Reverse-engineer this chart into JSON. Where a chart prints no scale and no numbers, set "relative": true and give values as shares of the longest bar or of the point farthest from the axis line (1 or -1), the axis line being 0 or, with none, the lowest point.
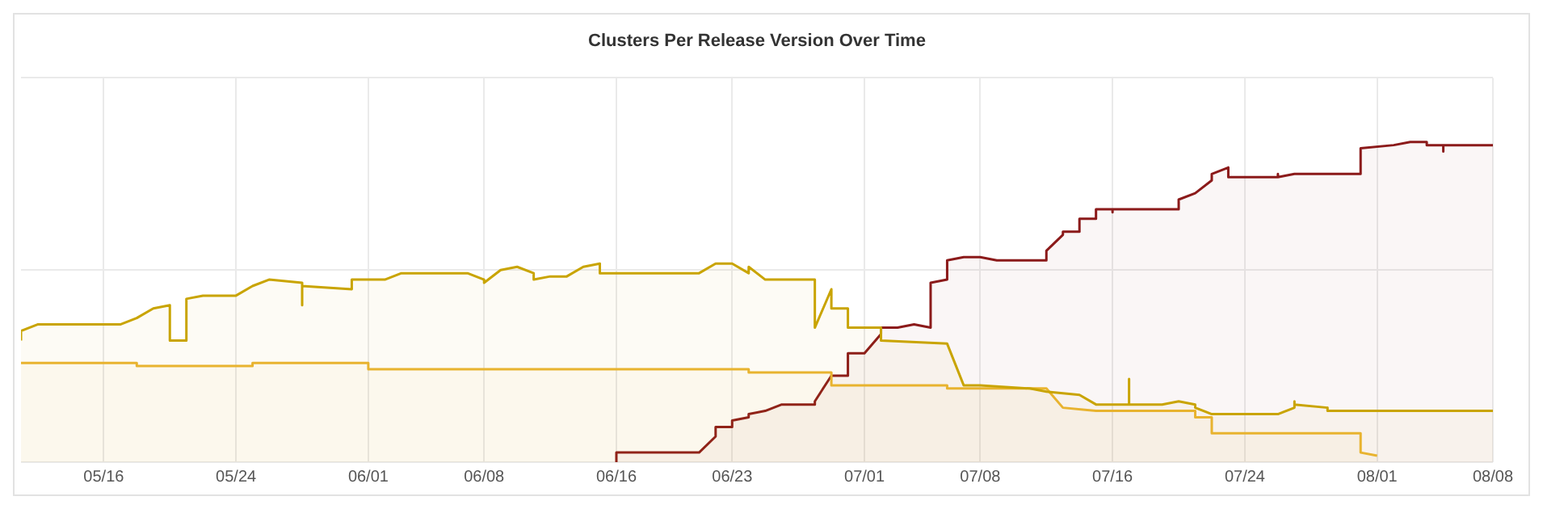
{
  "chart_data": {
    "type": "area",
    "title": "Clusters Per Release Version Over Time",
    "relative": true,
    "grid": true,
    "xlim": [
      "--05-11",
      "--08-08"
    ],
    "xticks": [
      {
        "value": "--05-16",
        "label": "05/16"
      },
      {
        "value": "--05-24",
        "label": "05/24"
      },
      {
        "value": "--06-01",
        "label": "06/01"
      },
      {
        "value": "--06-08",
        "label": "06/08"
      },
      {
        "value": "--06-16",
        "label": "06/16"
      },
      {
        "value": "--06-23",
        "label": "06/23"
      },
      {
        "value": "--07-01",
        "label": "07/01"
      },
      {
        "value": "--07-08",
        "label": "07/08"
      },
      {
        "value": "--07-16",
        "label": "07/16"
      },
      {
        "value": "--07-24",
        "label": "07/24"
      },
      {
        "value": "--08-01",
        "label": "08/01"
      },
      {
        "value": "--08-08",
        "label": "08/08"
      }
    ],
    "series": [
      {
        "color": "#c9a400",
        "x": [
          "--05-11",
          "--05-11",
          "--05-12",
          "--05-17",
          "--05-18",
          "--05-19",
          "--05-20",
          "--05-20",
          "--05-21",
          "--05-21",
          "--05-22",
          "--05-24",
          "--05-25",
          "--05-26",
          "--05-28",
          "--05-28",
          "--05-28",
          "--05-31",
          "--05-31",
          "--06-02",
          "--06-03",
          "--06-07",
          "--06-08",
          "--06-08",
          "--06-09",
          "--06-10",
          "--06-11",
          "--06-11",
          "--06-12",
          "--06-13",
          "--06-14",
          "--06-15",
          "--06-15",
          "--06-18",
          "--06-21",
          "--06-22",
          "--06-23",
          "--06-24",
          "--06-24",
          "--06-25",
          "--06-28",
          "--06-28",
          "--06-29",
          "--06-29",
          "--06-30",
          "--06-30",
          "--07-02",
          "--07-02",
          "--07-06",
          "--07-07",
          "--07-08",
          "--07-11",
          "--07-12",
          "--07-14",
          "--07-15",
          "--07-17",
          "--07-17",
          "--07-17",
          "--07-19",
          "--07-20",
          "--07-21",
          "--07-21",
          "--07-22",
          "--07-26",
          "--07-27",
          "--07-27",
          "--07-27",
          "--07-29",
          "--07-29",
          "--08-08"
        ],
        "values": [
          0.38,
          0.41,
          0.43,
          0.43,
          0.45,
          0.48,
          0.49,
          0.38,
          0.38,
          0.51,
          0.52,
          0.52,
          0.55,
          0.57,
          0.56,
          0.49,
          0.55,
          0.54,
          0.57,
          0.57,
          0.59,
          0.59,
          0.57,
          0.56,
          0.6,
          0.61,
          0.59,
          0.57,
          0.58,
          0.58,
          0.61,
          0.62,
          0.59,
          0.59,
          0.59,
          0.62,
          0.62,
          0.59,
          0.61,
          0.57,
          0.57,
          0.42,
          0.54,
          0.48,
          0.48,
          0.42,
          0.42,
          0.38,
          0.37,
          0.24,
          0.24,
          0.23,
          0.22,
          0.21,
          0.18,
          0.18,
          0.26,
          0.18,
          0.18,
          0.19,
          0.18,
          0.17,
          0.15,
          0.15,
          0.17,
          0.19,
          0.18,
          0.17,
          0.16,
          0.16
        ]
      },
      {
        "color": "#eab531",
        "x": [
          "--05-11",
          "--05-18",
          "--05-18",
          "--05-25",
          "--05-25",
          "--06-01",
          "--06-01",
          "--06-24",
          "--06-24",
          "--06-29",
          "--06-29",
          "--07-06",
          "--07-06",
          "--07-12",
          "--07-13",
          "--07-15",
          "--07-21",
          "--07-21",
          "--07-22",
          "--07-22",
          "--07-31",
          "--07-31",
          "--08-01"
        ],
        "values": [
          0.31,
          0.31,
          0.3,
          0.3,
          0.31,
          0.31,
          0.29,
          0.29,
          0.28,
          0.28,
          0.24,
          0.24,
          0.23,
          0.23,
          0.17,
          0.16,
          0.16,
          0.14,
          0.14,
          0.09,
          0.09,
          0.03,
          0.02
        ]
      },
      {
        "color": "#8b1a1a",
        "x": [
          "--06-16",
          "--06-16",
          "--06-21",
          "--06-22",
          "--06-22",
          "--06-23",
          "--06-23",
          "--06-24",
          "--06-24",
          "--06-25",
          "--06-26",
          "--06-28",
          "--06-28",
          "--06-29",
          "--06-30",
          "--06-30",
          "--07-01",
          "--07-02",
          "--07-02",
          "--07-03",
          "--07-04",
          "--07-05",
          "--07-05",
          "--07-06",
          "--07-06",
          "--07-07",
          "--07-08",
          "--07-09",
          "--07-12",
          "--07-12",
          "--07-13",
          "--07-13",
          "--07-14",
          "--07-14",
          "--07-15",
          "--07-15",
          "--07-16",
          "--07-16",
          "--07-16",
          "--07-20",
          "--07-20",
          "--07-21",
          "--07-21",
          "--07-22",
          "--07-22",
          "--07-23",
          "--07-23",
          "--07-26",
          "--07-26",
          "--07-26",
          "--07-27",
          "--07-31",
          "--07-31",
          "--08-02",
          "--08-03",
          "--08-04",
          "--08-04",
          "--08-05",
          "--08-05",
          "--08-05",
          "--08-08"
        ],
        "values": [
          0,
          0.03,
          0.03,
          0.08,
          0.11,
          0.11,
          0.13,
          0.14,
          0.15,
          0.16,
          0.18,
          0.18,
          0.19,
          0.27,
          0.27,
          0.34,
          0.34,
          0.4,
          0.42,
          0.42,
          0.43,
          0.42,
          0.56,
          0.57,
          0.63,
          0.64,
          0.64,
          0.63,
          0.63,
          0.66,
          0.71,
          0.72,
          0.72,
          0.76,
          0.76,
          0.79,
          0.79,
          0.78,
          0.79,
          0.79,
          0.82,
          0.84,
          0.84,
          0.88,
          0.9,
          0.92,
          0.89,
          0.89,
          0.9,
          0.89,
          0.9,
          0.9,
          0.98,
          0.99,
          1,
          1,
          0.99,
          0.99,
          0.97,
          0.99,
          0.99
        ]
      }
    ]
  }
}
